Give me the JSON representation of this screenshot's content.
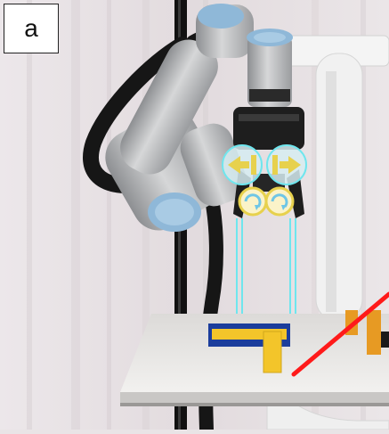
{
  "panel_label": "a",
  "colors": {
    "background_curtain": "#e6e0e3",
    "table_top": "#eceae8",
    "robot_body": "#b9bbbd",
    "robot_joint_cap": "#8fb8d8",
    "cable": "#1a1a1a",
    "overlay_cyan": "#6fe6ee",
    "overlay_yellow": "#e7d14d",
    "block_yellow": "#f3c52a",
    "block_orange": "#e79a23",
    "block_blue": "#1b3d9c",
    "red_line": "#ff1a1a"
  },
  "icons": [
    "gripper-arrow-icon",
    "rotation-icon"
  ]
}
